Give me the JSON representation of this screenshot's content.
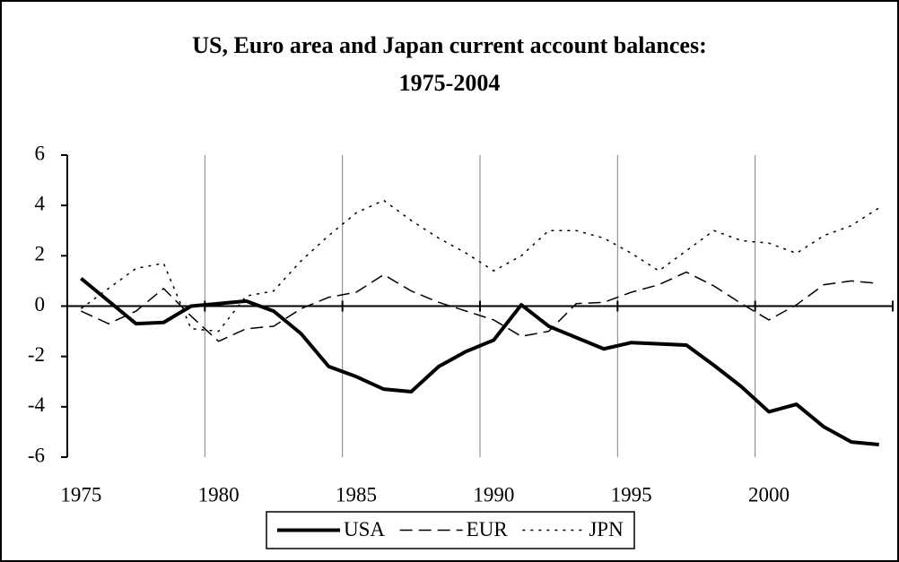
{
  "chart_data": {
    "type": "line",
    "title": "US, Euro area and Japan current account balances: 1975-2004",
    "categories": [
      "1975",
      null,
      null,
      null,
      null,
      "1980",
      null,
      null,
      null,
      null,
      "1985",
      null,
      null,
      null,
      null,
      "1990",
      null,
      null,
      null,
      null,
      "1995",
      null,
      null,
      null,
      null,
      "2000",
      null,
      null,
      null,
      null
    ],
    "series": [
      {
        "name": "USA",
        "color": "#000000",
        "dash": "solid",
        "values": [
          1.1,
          0.2,
          -0.7,
          -0.65,
          0.0,
          0.1,
          0.2,
          -0.2,
          -1.1,
          -2.4,
          -2.8,
          -3.3,
          -3.4,
          -2.4,
          -1.8,
          -1.35,
          0.05,
          -0.8,
          -1.25,
          -1.7,
          -1.45,
          -1.5,
          -1.55,
          -2.35,
          -3.2,
          -4.2,
          -3.9,
          -4.8,
          -5.4,
          -5.5
        ]
      },
      {
        "name": "EUR",
        "color": "#000000",
        "dash": "dashed",
        "values": [
          -0.2,
          -0.7,
          -0.2,
          0.7,
          -0.4,
          -1.4,
          -0.9,
          -0.8,
          -0.1,
          0.35,
          0.55,
          1.25,
          0.6,
          0.15,
          -0.2,
          -0.55,
          -1.2,
          -1.0,
          0.1,
          0.15,
          0.55,
          0.85,
          1.35,
          0.8,
          0.1,
          -0.55,
          0.05,
          0.85,
          1.0,
          0.9
        ]
      },
      {
        "name": "JPN",
        "color": "#000000",
        "dash": "dotted",
        "values": [
          -0.1,
          0.7,
          1.5,
          1.7,
          -0.9,
          -1.0,
          0.4,
          0.6,
          1.8,
          2.8,
          3.7,
          4.2,
          3.4,
          2.7,
          2.1,
          1.4,
          2.0,
          3.0,
          3.0,
          2.7,
          2.1,
          1.4,
          2.2,
          3.0,
          2.6,
          2.5,
          2.1,
          2.8,
          3.2,
          3.9
        ]
      }
    ],
    "ylim": [
      -6,
      6
    ],
    "yticks": [
      -6,
      -4,
      -2,
      0,
      2,
      4,
      6
    ],
    "grid": true,
    "legend": "bottom"
  }
}
